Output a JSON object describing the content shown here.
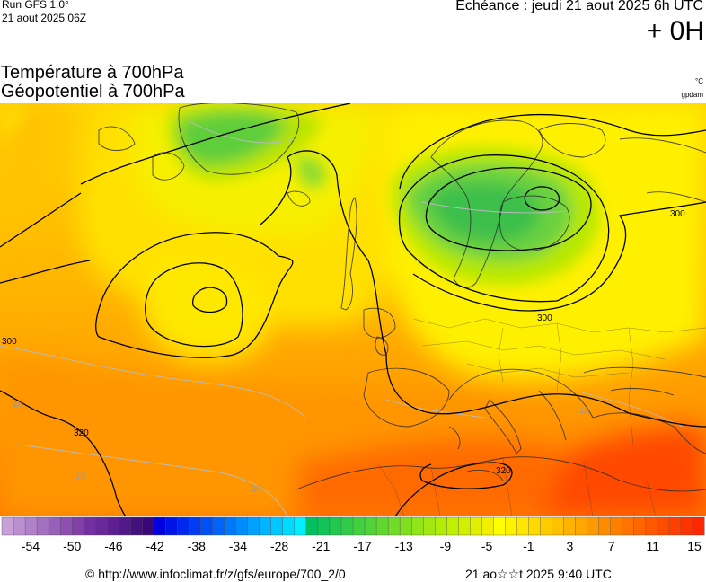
{
  "header": {
    "run": "Run GFS 1.0°",
    "run_date": "21 aout 2025 06Z",
    "echeance": "Echéance : jeudi 21 aout 2025 6h UTC",
    "lead": "+ 0H"
  },
  "titles": {
    "line1": "Température à 700hPa",
    "line2": "Géopotentiel à 700hPa",
    "unit_temp": "°C",
    "unit_geo": "gpdam"
  },
  "map": {
    "contour_labels": [
      {
        "text": "300",
        "pos": "top-right"
      },
      {
        "text": "300",
        "pos": "central-europe"
      },
      {
        "text": "300",
        "pos": "far-west"
      },
      {
        "text": "320",
        "pos": "south-west"
      },
      {
        "text": "320",
        "pos": "north-africa"
      },
      {
        "text": "10",
        "pos": "balkans"
      },
      {
        "text": "10",
        "pos": "atlantic-south"
      },
      {
        "text": "10",
        "pos": "iberia-west"
      },
      {
        "text": "10",
        "pos": "far-west-lower"
      }
    ]
  },
  "scale": {
    "ticks": [
      "-54",
      "-50",
      "-46",
      "-42",
      "-38",
      "-34",
      "-28",
      "-21",
      "-17",
      "-13",
      "-9",
      "-5",
      "-1",
      "3",
      "7",
      "11",
      "15"
    ],
    "colors": [
      "#c8a0d8",
      "#bc90d0",
      "#b080c8",
      "#a470c0",
      "#9860b8",
      "#8c50b0",
      "#8040a8",
      "#7430a0",
      "#682898",
      "#5c2090",
      "#501888",
      "#441080",
      "#380878",
      "#0000e0",
      "#0014e8",
      "#0028ee",
      "#003cf2",
      "#0050f6",
      "#0064f8",
      "#0078fa",
      "#008cfc",
      "#00a0fe",
      "#00b4ff",
      "#00c8ff",
      "#00dcff",
      "#00f0ff",
      "#00c060",
      "#10c458",
      "#20c850",
      "#30cc48",
      "#40d040",
      "#50d438",
      "#60d830",
      "#70dc28",
      "#80e020",
      "#90e418",
      "#a0e810",
      "#b0ec08",
      "#c0f000",
      "#d0f000",
      "#e0f000",
      "#f0f000",
      "#ffff00",
      "#fff200",
      "#ffe600",
      "#ffd900",
      "#ffcc00",
      "#ffc000",
      "#ffb300",
      "#ffa600",
      "#ff9900",
      "#ff8c00",
      "#ff8000",
      "#ff7300",
      "#ff6600",
      "#ff5900",
      "#ff4d00",
      "#ff4000",
      "#ff3300",
      "#ff2600"
    ]
  },
  "footer": {
    "url": "© http://www.infoclimat.fr/z/gfs/europe/700_2/0",
    "generated": "21 ao☆☆t 2025  9:40 UTC"
  }
}
